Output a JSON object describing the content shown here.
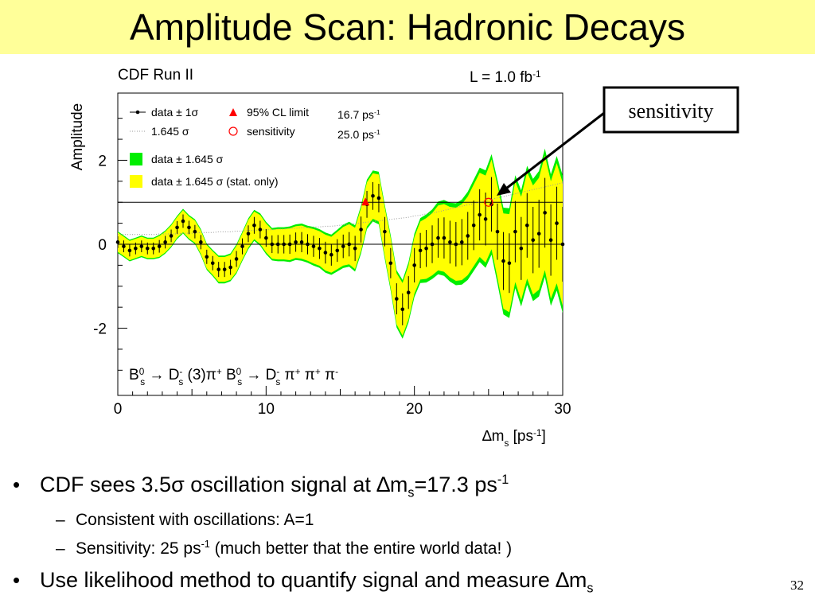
{
  "slide": {
    "title": "Amplitude Scan: Hadronic Decays",
    "page_number": "32",
    "title_bg": "#ffff99"
  },
  "bullets": [
    {
      "level": 1,
      "parts": [
        "CDF sees 3.5",
        "σ",
        " oscillation signal at ",
        "∆",
        "m",
        "s",
        "=17.3 ps",
        "-1"
      ]
    },
    {
      "level": 2,
      "parts": [
        "Consistent with oscillations: A=1"
      ]
    },
    {
      "level": 2,
      "parts": [
        "Sensitivity: 25 ps",
        "-1",
        " (much better that the entire world data! )"
      ]
    },
    {
      "level": 1,
      "parts": [
        "Use likelihood method to quantify signal and measure ",
        "∆",
        "m",
        "s"
      ]
    }
  ],
  "callout": {
    "label": "sensitivity"
  },
  "chart_data": {
    "type": "line",
    "title": "CDF Run II",
    "luminosity": {
      "text": "L = 1.0 fb",
      "sup": "-1"
    },
    "ylabel": "Amplitude",
    "xlabel": {
      "pre": "∆m",
      "sub": "s",
      "mid": " [ps",
      "sup": "-1",
      "post": "]"
    },
    "xlim": [
      0,
      30
    ],
    "ylim": [
      -3.6,
      3.6
    ],
    "xticks": [
      "0",
      "10",
      "20",
      "30"
    ],
    "yticks": [
      "-2",
      "0",
      "2"
    ],
    "xtick_values": [
      0,
      10,
      20,
      30
    ],
    "ytick_values": [
      -2,
      0,
      2
    ],
    "reference_lines": [
      0,
      1
    ],
    "colors": {
      "stat_band": "#ffff00",
      "total_band": "#00ee00",
      "limit_marker": "#ff0000",
      "sensitivity_marker": "#ff0000"
    },
    "legend": {
      "placement": "top-left",
      "entries": [
        {
          "label": "data ± 1σ",
          "type": "points"
        },
        {
          "label": "95% CL limit",
          "type": "triangle",
          "value": "16.7 ps",
          "value_sup": "-1"
        },
        {
          "label": "1.645 σ",
          "type": "dotted"
        },
        {
          "label": "sensitivity",
          "type": "circle",
          "value": "25.0 ps",
          "value_sup": "-1"
        },
        {
          "label": "data ± 1.645 σ",
          "type": "green-box"
        },
        {
          "label": "data ± 1.645 σ (stat. only)",
          "type": "yellow-box"
        }
      ]
    },
    "annotation": {
      "decay1": {
        "p": "B",
        "psup": "0",
        "psub": "s",
        "arrow": "→",
        "d": "D",
        "dsup": "-",
        "dsub": "s",
        "rest": " (3)π",
        "restsup": "+"
      },
      "decay2": {
        "p": "B",
        "psup": "0",
        "psub": "s",
        "arrow": "→",
        "d": "D",
        "dsup": "-",
        "dsub": "s",
        "rest": " π",
        "restsup": "+",
        "rest2": " π",
        "rest2sup": "+",
        "rest3": " π",
        "rest3sup": "-"
      }
    },
    "limit_point": {
      "x": 16.7,
      "y": 1.0
    },
    "sensitivity_point": {
      "x": 25.0,
      "y": 1.0
    },
    "series": [
      {
        "name": "data",
        "x": [
          0,
          0.4,
          0.8,
          1.2,
          1.6,
          2.0,
          2.4,
          2.8,
          3.2,
          3.6,
          4.0,
          4.4,
          4.8,
          5.2,
          5.6,
          6.0,
          6.4,
          6.8,
          7.2,
          7.6,
          8.0,
          8.4,
          8.8,
          9.2,
          9.6,
          10.0,
          10.4,
          10.8,
          11.2,
          11.6,
          12.0,
          12.4,
          12.8,
          13.2,
          13.6,
          14.0,
          14.4,
          14.8,
          15.2,
          15.6,
          16.0,
          16.4,
          16.8,
          17.2,
          17.6,
          18.0,
          18.4,
          18.8,
          19.2,
          19.6,
          20.0,
          20.4,
          20.8,
          21.2,
          21.6,
          22.0,
          22.4,
          22.8,
          23.2,
          23.6,
          24.0,
          24.4,
          24.8,
          25.2,
          25.6,
          26.0,
          26.4,
          26.8,
          27.2,
          27.6,
          28.0,
          28.4,
          28.8,
          29.2,
          29.6,
          30.0
        ],
        "y": [
          0.05,
          -0.05,
          -0.15,
          -0.1,
          -0.05,
          -0.1,
          -0.1,
          -0.05,
          0.05,
          0.2,
          0.4,
          0.55,
          0.4,
          0.3,
          0.05,
          -0.3,
          -0.45,
          -0.6,
          -0.6,
          -0.55,
          -0.35,
          -0.05,
          0.25,
          0.45,
          0.35,
          0.15,
          0.0,
          0.0,
          0.0,
          0.0,
          0.05,
          0.05,
          0.0,
          -0.05,
          -0.1,
          -0.2,
          -0.25,
          -0.15,
          -0.05,
          0.0,
          -0.1,
          0.35,
          0.95,
          1.15,
          1.1,
          0.3,
          -0.45,
          -1.3,
          -1.55,
          -1.15,
          -0.5,
          -0.15,
          -0.1,
          0.0,
          0.15,
          0.15,
          0.05,
          0.0,
          0.05,
          0.2,
          0.45,
          0.7,
          0.6,
          0.95,
          0.3,
          -0.4,
          -0.45,
          0.3,
          -0.1,
          0.45,
          0.1,
          0.25,
          0.75,
          0.1,
          0.5,
          0.0
        ],
        "sigma": [
          0.14,
          0.14,
          0.14,
          0.14,
          0.14,
          0.14,
          0.14,
          0.15,
          0.15,
          0.15,
          0.15,
          0.16,
          0.16,
          0.16,
          0.17,
          0.17,
          0.17,
          0.18,
          0.18,
          0.18,
          0.19,
          0.19,
          0.2,
          0.2,
          0.21,
          0.21,
          0.21,
          0.22,
          0.22,
          0.23,
          0.23,
          0.24,
          0.24,
          0.25,
          0.25,
          0.26,
          0.26,
          0.27,
          0.28,
          0.29,
          0.3,
          0.31,
          0.32,
          0.33,
          0.34,
          0.35,
          0.36,
          0.37,
          0.38,
          0.39,
          0.41,
          0.42,
          0.44,
          0.45,
          0.47,
          0.49,
          0.51,
          0.53,
          0.55,
          0.57,
          0.59,
          0.61,
          0.63,
          0.65,
          0.67,
          0.69,
          0.71,
          0.73,
          0.75,
          0.77,
          0.79,
          0.81,
          0.83,
          0.85,
          0.87,
          0.89
        ]
      }
    ]
  }
}
